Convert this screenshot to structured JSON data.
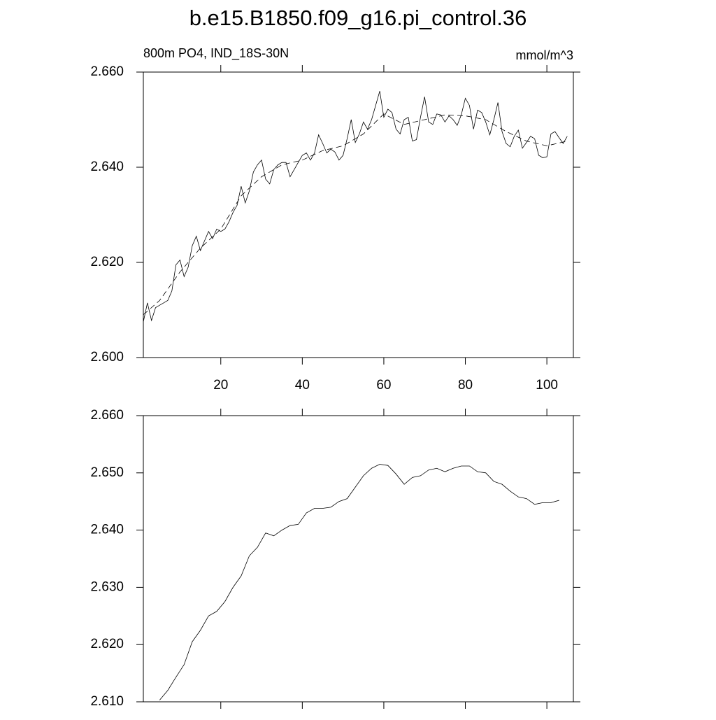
{
  "chart_data": [
    {
      "type": "line",
      "title": "b.e15.B1850.f09_g16.pi_control.36",
      "left_string": "800m PO4, IND_18S-30N",
      "right_string": "mmol/m^3",
      "xlim": [
        1,
        106.5
      ],
      "ylim": [
        2.6,
        2.66
      ],
      "xticks": [
        20,
        40,
        60,
        80,
        100
      ],
      "yticks": [
        {
          "value": 2.6,
          "label": "2.600"
        },
        {
          "value": 2.62,
          "label": "2.620"
        },
        {
          "value": 2.64,
          "label": "2.640"
        },
        {
          "value": 2.66,
          "label": "2.660"
        }
      ],
      "series": [
        {
          "color": "#000000",
          "dash": false,
          "x": [
            1,
            2,
            3,
            4,
            5,
            6,
            7,
            8,
            9,
            10,
            11,
            12,
            13,
            14,
            15,
            16,
            17,
            18,
            19,
            20,
            21,
            22,
            23,
            24,
            25,
            26,
            27,
            28,
            29,
            30,
            31,
            32,
            33,
            34,
            35,
            36,
            37,
            38,
            39,
            40,
            41,
            42,
            43,
            44,
            45,
            46,
            47,
            48,
            49,
            50,
            51,
            52,
            53,
            54,
            55,
            56,
            57,
            58,
            59,
            60,
            61,
            62,
            63,
            64,
            65,
            66,
            67,
            68,
            69,
            70,
            71,
            72,
            73,
            74,
            75,
            76,
            77,
            78,
            79,
            80,
            81,
            82,
            83,
            84,
            85,
            86,
            87,
            88,
            89,
            90,
            91,
            92,
            93,
            94,
            95,
            96,
            97,
            98,
            99,
            100,
            101,
            102,
            103,
            104,
            105
          ],
          "values": [
            2.6075,
            2.6115,
            2.6078,
            2.6105,
            2.611,
            2.6115,
            2.612,
            2.614,
            2.6195,
            2.6205,
            2.617,
            2.619,
            2.6235,
            2.6255,
            2.6225,
            2.6245,
            2.6265,
            2.625,
            2.627,
            2.6265,
            2.627,
            2.6285,
            2.6305,
            2.632,
            2.636,
            2.6325,
            2.635,
            2.639,
            2.6405,
            2.6415,
            2.6375,
            2.6365,
            2.6395,
            2.6405,
            2.641,
            2.641,
            2.638,
            2.6395,
            2.641,
            2.6425,
            2.643,
            2.6415,
            2.643,
            2.6468,
            2.645,
            2.643,
            2.6438,
            2.6432,
            2.6415,
            2.6425,
            2.646,
            2.65,
            2.6452,
            2.647,
            2.6495,
            2.648,
            2.65,
            2.653,
            2.656,
            2.6505,
            2.6522,
            2.6515,
            2.648,
            2.647,
            2.65,
            2.6505,
            2.6455,
            2.6458,
            2.6505,
            2.6548,
            2.6495,
            2.649,
            2.6512,
            2.651,
            2.6495,
            2.6508,
            2.65,
            2.6488,
            2.651,
            2.6545,
            2.653,
            2.648,
            2.652,
            2.6515,
            2.6495,
            2.6468,
            2.65,
            2.6536,
            2.6475,
            2.645,
            2.6443,
            2.6465,
            2.6478,
            2.644,
            2.6452,
            2.6465,
            2.646,
            2.6425,
            2.642,
            2.6422,
            2.647,
            2.6475,
            2.6462,
            2.645,
            2.6465
          ]
        },
        {
          "color": "#000000",
          "dash": true,
          "x": [
            1,
            5,
            10,
            15,
            20,
            25,
            30,
            35,
            40,
            45,
            50,
            55,
            60,
            65,
            70,
            75,
            80,
            85,
            90,
            95,
            100,
            105
          ],
          "values": [
            2.609,
            2.612,
            2.618,
            2.623,
            2.627,
            2.634,
            2.638,
            2.6405,
            2.6415,
            2.6435,
            2.6445,
            2.647,
            2.6512,
            2.649,
            2.65,
            2.651,
            2.6508,
            2.65,
            2.6475,
            2.6455,
            2.6445,
            2.6455
          ]
        }
      ]
    },
    {
      "type": "line",
      "xlim": [
        1,
        106.5
      ],
      "ylim": [
        2.61,
        2.66
      ],
      "xticks": [
        20,
        40,
        60,
        80,
        100
      ],
      "yticks": [
        {
          "value": 2.61,
          "label": "2.610"
        },
        {
          "value": 2.62,
          "label": "2.620"
        },
        {
          "value": 2.63,
          "label": "2.630"
        },
        {
          "value": 2.64,
          "label": "2.640"
        },
        {
          "value": 2.65,
          "label": "2.650"
        },
        {
          "value": 2.66,
          "label": "2.660"
        }
      ],
      "series": [
        {
          "color": "#000000",
          "dash": false,
          "x": [
            5,
            7,
            9,
            11,
            13,
            15,
            17,
            19,
            21,
            23,
            25,
            27,
            29,
            31,
            33,
            35,
            37,
            39,
            41,
            43,
            45,
            47,
            49,
            51,
            53,
            55,
            57,
            59,
            61,
            63,
            65,
            67,
            69,
            71,
            73,
            75,
            77,
            79,
            81,
            83,
            85,
            87,
            89,
            91,
            93,
            95,
            97,
            99,
            101,
            103
          ],
          "values": [
            2.6103,
            2.612,
            2.6143,
            2.6165,
            2.6205,
            2.6225,
            2.625,
            2.6258,
            2.6275,
            2.63,
            2.632,
            2.6355,
            2.637,
            2.6395,
            2.639,
            2.64,
            2.6408,
            2.641,
            2.643,
            2.6438,
            2.6438,
            2.644,
            2.645,
            2.6455,
            2.6475,
            2.6495,
            2.6508,
            2.6515,
            2.6513,
            2.6498,
            2.648,
            2.6492,
            2.6495,
            2.6505,
            2.6508,
            2.6502,
            2.6508,
            2.6512,
            2.6512,
            2.6502,
            2.65,
            2.6485,
            2.648,
            2.6468,
            2.6458,
            2.6455,
            2.6445,
            2.6448,
            2.6448,
            2.6452
          ]
        }
      ]
    }
  ]
}
